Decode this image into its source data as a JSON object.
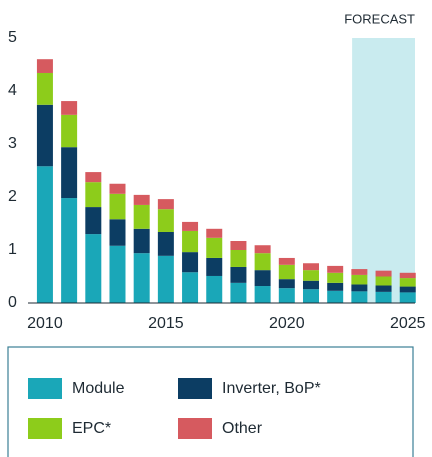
{
  "chart_data": {
    "type": "stacked_bar",
    "x": [
      2010,
      2011,
      2012,
      2013,
      2014,
      2015,
      2016,
      2017,
      2018,
      2019,
      2020,
      2021,
      2022,
      2023,
      2024,
      2025
    ],
    "series": [
      {
        "name": "Module",
        "color": "#1aa7b8",
        "values": [
          2.58,
          1.98,
          1.3,
          1.08,
          0.94,
          0.89,
          0.58,
          0.51,
          0.38,
          0.32,
          0.28,
          0.26,
          0.23,
          0.22,
          0.21,
          0.2
        ]
      },
      {
        "name": "Inverter, BoP*",
        "color": "#0c3d63",
        "values": [
          1.16,
          0.96,
          0.51,
          0.5,
          0.46,
          0.45,
          0.38,
          0.34,
          0.3,
          0.3,
          0.17,
          0.16,
          0.15,
          0.13,
          0.12,
          0.11
        ]
      },
      {
        "name": "EPC*",
        "color": "#8dcc1b",
        "values": [
          0.6,
          0.61,
          0.47,
          0.48,
          0.45,
          0.43,
          0.4,
          0.38,
          0.32,
          0.32,
          0.27,
          0.2,
          0.19,
          0.18,
          0.17,
          0.16
        ]
      },
      {
        "name": "Other",
        "color": "#d65a5f",
        "values": [
          0.26,
          0.26,
          0.19,
          0.19,
          0.19,
          0.19,
          0.17,
          0.17,
          0.17,
          0.15,
          0.13,
          0.13,
          0.13,
          0.11,
          0.11,
          0.1
        ]
      }
    ],
    "forecast": {
      "label": "FORECAST",
      "start": 2022.7,
      "color": "#c9ebef"
    },
    "xlim": [
      2009.3,
      2025.3
    ],
    "xticks": [
      2010,
      2015,
      2020,
      2025
    ],
    "ylim": [
      0,
      5
    ],
    "yticks": [
      0,
      1,
      2,
      3,
      4,
      5
    ],
    "grid": false
  }
}
